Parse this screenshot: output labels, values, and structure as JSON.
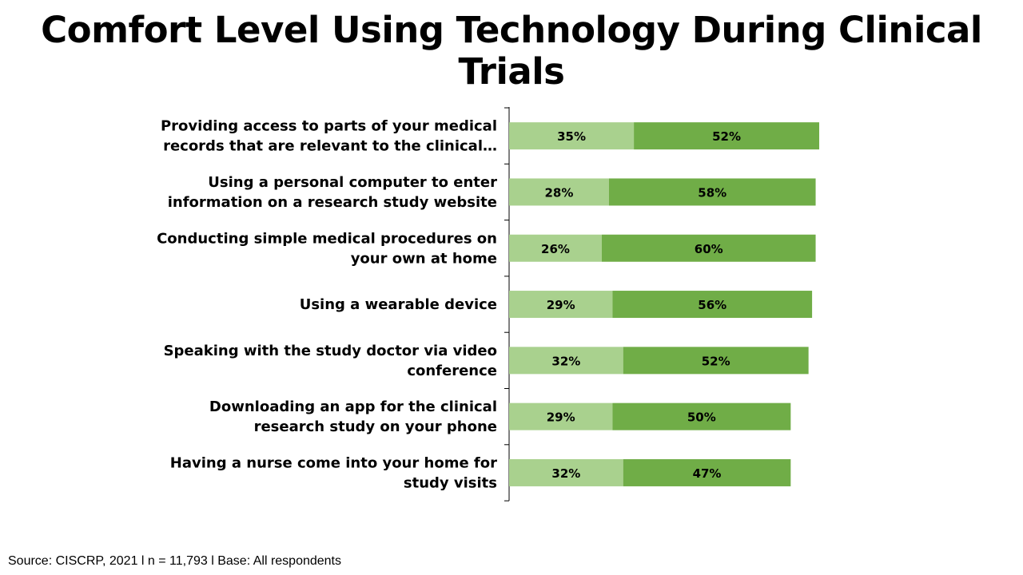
{
  "title_line1": "Comfort Level Using Technology During Clinical",
  "title_line2": "Trials",
  "source": "Source: CISCRP, 2021 l n = 11,793 l Base: All respondents",
  "colors": {
    "light": "#a9d18e",
    "dark": "#70ad47",
    "axis": "#000000"
  },
  "chart_data": {
    "type": "bar",
    "orientation": "horizontal",
    "stacked": true,
    "categories": [
      [
        "Providing access to parts of your medical",
        "records that are relevant to the clinical…"
      ],
      [
        "Using a personal computer to enter",
        "information on a research study website"
      ],
      [
        "Conducting simple medical procedures on",
        "your own at home"
      ],
      [
        "Using a wearable device"
      ],
      [
        "Speaking with the study doctor via video",
        "conference"
      ],
      [
        "Downloading an app for the clinical",
        "research study on your phone"
      ],
      [
        "Having a nurse come into your home for",
        "study visits"
      ]
    ],
    "series": [
      {
        "color": "#a9d18e",
        "values": [
          35,
          28,
          26,
          29,
          32,
          29,
          32
        ]
      },
      {
        "color": "#70ad47",
        "values": [
          52,
          58,
          60,
          56,
          52,
          50,
          47
        ]
      }
    ],
    "value_suffix": "%",
    "xlim": [
      0,
      100
    ],
    "grid": false,
    "legend": "none"
  }
}
